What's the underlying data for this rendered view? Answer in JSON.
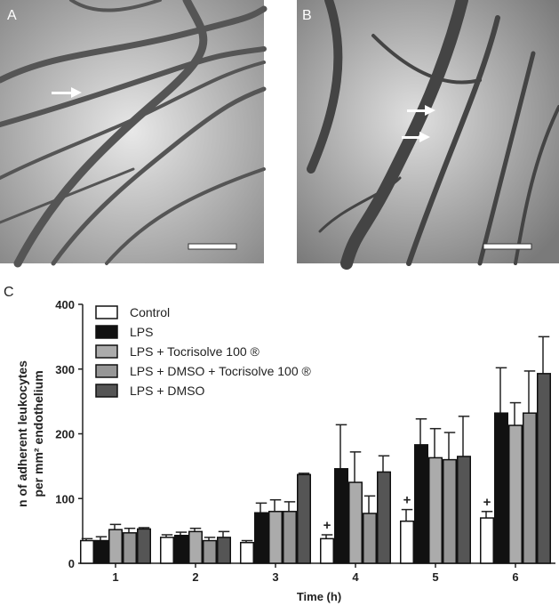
{
  "panels": [
    {
      "label": "A"
    },
    {
      "label": "B"
    }
  ],
  "chart_data": {
    "type": "bar",
    "panel_label": "C",
    "xlabel": "Time (h)",
    "ylabel": [
      "n of adherent leukocytes",
      "per mm² endothelium"
    ],
    "categories": [
      "1",
      "2",
      "3",
      "4",
      "5",
      "6"
    ],
    "ylim": [
      0,
      400
    ],
    "yticks": [
      0,
      100,
      200,
      300,
      400
    ],
    "series": [
      {
        "name": "Control",
        "color": "#ffffff",
        "values": [
          35,
          40,
          32,
          38,
          65,
          70
        ],
        "errors": [
          3,
          4,
          3,
          6,
          18,
          10
        ]
      },
      {
        "name": "LPS",
        "color": "#111111",
        "values": [
          35,
          43,
          78,
          146,
          183,
          232
        ],
        "errors": [
          6,
          5,
          15,
          68,
          40,
          70
        ]
      },
      {
        "name": "LPS + Tocrisolve 100 ®",
        "color": "#ababab",
        "values": [
          52,
          49,
          80,
          125,
          163,
          213
        ],
        "errors": [
          8,
          5,
          18,
          47,
          45,
          35
        ]
      },
      {
        "name": "LPS + DMSO + Tocrisolve 100 ®",
        "color": "#969696",
        "values": [
          47,
          35,
          80,
          77,
          160,
          232
        ],
        "errors": [
          7,
          5,
          15,
          27,
          42,
          65
        ]
      },
      {
        "name": "LPS + DMSO",
        "color": "#555555",
        "values": [
          53,
          40,
          137,
          141,
          165,
          293
        ],
        "errors": [
          2,
          9,
          2,
          25,
          62,
          57
        ]
      }
    ],
    "annotations": [
      {
        "text": "+",
        "category": "4"
      },
      {
        "text": "+",
        "category": "5"
      },
      {
        "text": "+",
        "category": "6"
      }
    ],
    "legend": "upper left"
  }
}
